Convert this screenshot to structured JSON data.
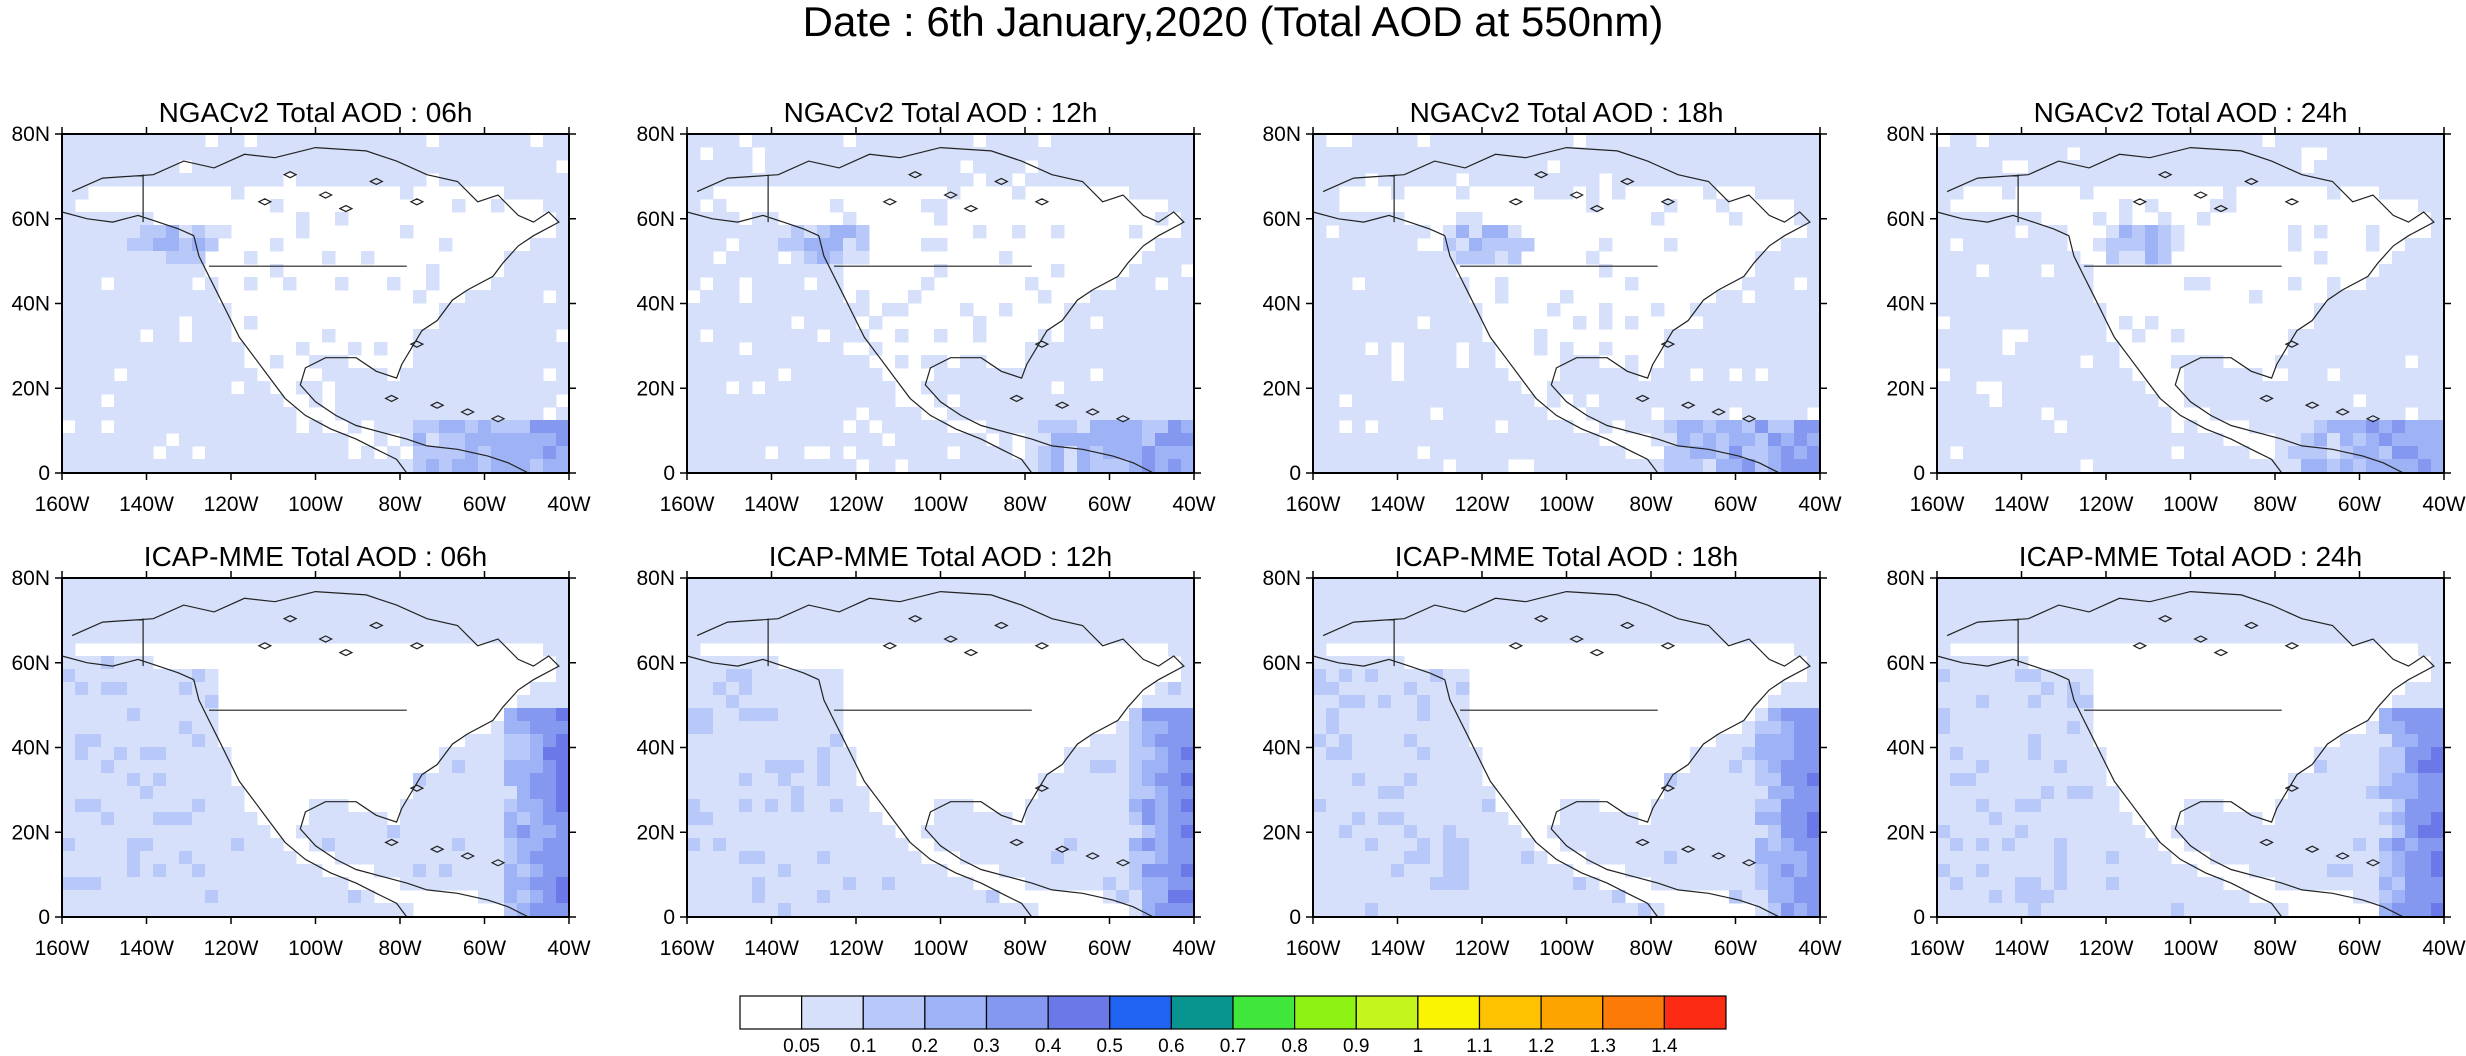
{
  "figure": {
    "title": "Date : 6th January,2020 (Total AOD at 550nm)"
  },
  "axes": {
    "lat_ticks": [
      "80N",
      "60N",
      "40N",
      "20N",
      "0"
    ],
    "lon_ticks": [
      "160W",
      "140W",
      "120W",
      "100W",
      "80W",
      "60W",
      "40W"
    ],
    "lon_range": [
      -160,
      -40
    ],
    "lat_range": [
      0,
      80
    ]
  },
  "panels": [
    {
      "title": "NGACv2 Total AOD : 06h",
      "model": "NGACv2",
      "hour": "06h"
    },
    {
      "title": "NGACv2 Total AOD : 12h",
      "model": "NGACv2",
      "hour": "12h"
    },
    {
      "title": "NGACv2 Total AOD : 18h",
      "model": "NGACv2",
      "hour": "18h"
    },
    {
      "title": "NGACv2 Total AOD : 24h",
      "model": "NGACv2",
      "hour": "24h"
    },
    {
      "title": "ICAP-MME Total AOD : 06h",
      "model": "ICAP-MME",
      "hour": "06h"
    },
    {
      "title": "ICAP-MME Total AOD : 12h",
      "model": "ICAP-MME",
      "hour": "12h"
    },
    {
      "title": "ICAP-MME Total AOD : 18h",
      "model": "ICAP-MME",
      "hour": "18h"
    },
    {
      "title": "ICAP-MME Total AOD : 24h",
      "model": "ICAP-MME",
      "hour": "24h"
    }
  ],
  "colorbar": {
    "labels": [
      "0.05",
      "0.1",
      "0.2",
      "0.3",
      "0.4",
      "0.5",
      "0.6",
      "0.7",
      "0.8",
      "0.9",
      "1",
      "1.1",
      "1.2",
      "1.3",
      "1.4"
    ],
    "colors": [
      "#ffffff",
      "#d6e0fb",
      "#b8c8f8",
      "#9db3f5",
      "#8498f0",
      "#6a78e8",
      "#1f63f0",
      "#08958f",
      "#40e63a",
      "#8ef214",
      "#c4f51d",
      "#f9f400",
      "#ffc200",
      "#fea400",
      "#fc7b08",
      "#fb2b14"
    ]
  }
}
